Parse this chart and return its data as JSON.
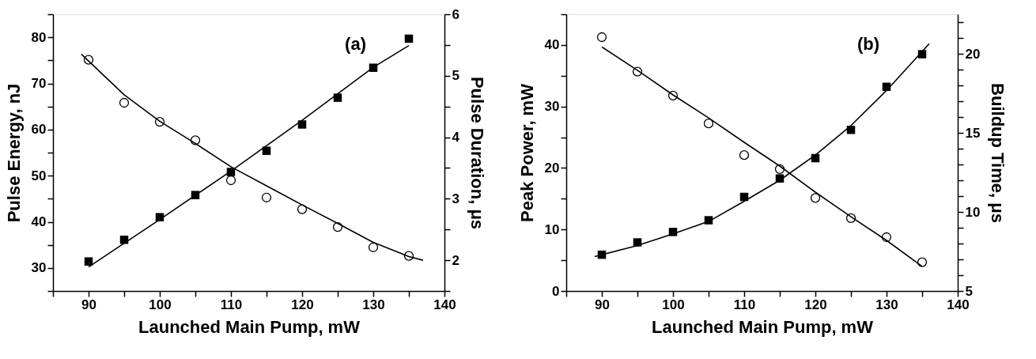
{
  "chart_data": [
    {
      "type": "scatter",
      "xlabel": "Launched Main Pump,  mW",
      "ylabel": "Pulse Energy,  nJ",
      "y2label": "Pulse Duration,  μs",
      "annotations": [
        "(a)"
      ],
      "xlim": [
        85,
        140
      ],
      "xticks": [
        {
          "value": 85,
          "label": null
        },
        90,
        {
          "value": 95,
          "label": null
        },
        100,
        {
          "value": 105,
          "label": null
        },
        110,
        {
          "value": 115,
          "label": null
        },
        120,
        {
          "value": 125,
          "label": null
        },
        130,
        {
          "value": 135,
          "label": null
        },
        140
      ],
      "ylim": [
        25,
        85
      ],
      "yticks": [
        {
          "value": 25,
          "label": null
        },
        30,
        {
          "value": 35,
          "label": null
        },
        40,
        {
          "value": 45,
          "label": null
        },
        50,
        {
          "value": 55,
          "label": null
        },
        60,
        {
          "value": 65,
          "label": null
        },
        70,
        {
          "value": 75,
          "label": null
        },
        80,
        {
          "value": 85,
          "label": null
        }
      ],
      "y2lim": [
        1.5,
        6
      ],
      "y2ticks": [
        {
          "value": 1.5,
          "label": null
        },
        2,
        {
          "value": 2.5,
          "label": null
        },
        3,
        {
          "value": 3.5,
          "label": null
        },
        4,
        {
          "value": 4.5,
          "label": null
        },
        5,
        {
          "value": 5.5,
          "label": null
        },
        6
      ],
      "grid": false,
      "legend": false,
      "series": [
        {
          "type": "scatter",
          "marker": "square",
          "color": "#000000",
          "x": [
            90,
            95,
            100,
            105,
            110,
            115,
            120,
            125,
            130,
            135
          ],
          "values": [
            31.4,
            36.1,
            41.0,
            45.8,
            50.8,
            55.4,
            61.1,
            66.9,
            73.4,
            79.7
          ]
        },
        {
          "type": "line",
          "marker": "none",
          "color": "#000000",
          "x": [
            90,
            100,
            110,
            120,
            130,
            135
          ],
          "values": [
            30.2,
            40.5,
            51.0,
            62.0,
            73.5,
            78.2
          ]
        },
        {
          "type": "scatter",
          "marker": "circle",
          "color": "#000000",
          "axis": "y2",
          "x": [
            90,
            95,
            100,
            105,
            110,
            115,
            120,
            125,
            130,
            135
          ],
          "values": [
            5.26,
            4.56,
            4.25,
            3.95,
            3.3,
            3.02,
            2.83,
            2.54,
            2.21,
            2.07
          ]
        },
        {
          "type": "line",
          "marker": "none",
          "color": "#000000",
          "axis": "y2",
          "x": [
            89,
            95,
            100,
            105,
            110,
            115,
            120,
            125,
            130,
            135,
            137
          ],
          "values": [
            5.35,
            4.69,
            4.26,
            3.9,
            3.52,
            3.21,
            2.9,
            2.6,
            2.29,
            2.06,
            2.0
          ]
        }
      ]
    },
    {
      "type": "scatter",
      "xlabel": "Launched Main Pump,  mW",
      "ylabel": "Peak Power,  mW",
      "y2label": "Buildup Time,  μs",
      "annotations": [
        "(b)"
      ],
      "xlim": [
        85,
        140
      ],
      "xticks": [
        {
          "value": 85,
          "label": null
        },
        90,
        {
          "value": 95,
          "label": null
        },
        100,
        {
          "value": 105,
          "label": null
        },
        110,
        {
          "value": 115,
          "label": null
        },
        120,
        {
          "value": 125,
          "label": null
        },
        130,
        {
          "value": 135,
          "label": null
        },
        140
      ],
      "ylim": [
        0,
        45
      ],
      "yticks": [
        0,
        {
          "value": 5,
          "label": null
        },
        10,
        {
          "value": 15,
          "label": null
        },
        20,
        {
          "value": 25,
          "label": null
        },
        30,
        {
          "value": 35,
          "label": null
        },
        40,
        {
          "value": 45,
          "label": null
        }
      ],
      "y2lim": [
        5,
        22.5
      ],
      "y2ticks": [
        5,
        {
          "value": 6,
          "label": null
        },
        {
          "value": 7,
          "label": null
        },
        {
          "value": 8,
          "label": null
        },
        {
          "value": 9,
          "label": null
        },
        10,
        {
          "value": 11,
          "label": null
        },
        {
          "value": 12,
          "label": null
        },
        {
          "value": 13,
          "label": null
        },
        {
          "value": 14,
          "label": null
        },
        15,
        {
          "value": 16,
          "label": null
        },
        {
          "value": 17,
          "label": null
        },
        {
          "value": 18,
          "label": null
        },
        {
          "value": 19,
          "label": null
        },
        20,
        {
          "value": 21,
          "label": null
        },
        {
          "value": 22,
          "label": null
        }
      ],
      "grid": false,
      "legend": false,
      "series": [
        {
          "type": "scatter",
          "marker": "square",
          "color": "#000000",
          "x": [
            90,
            95,
            100,
            105,
            110,
            115,
            120,
            125,
            130,
            135
          ],
          "values": [
            5.9,
            7.9,
            9.6,
            11.5,
            15.3,
            18.3,
            21.6,
            26.2,
            33.2,
            38.5
          ]
        },
        {
          "type": "line",
          "marker": "none",
          "color": "#000000",
          "x": [
            89,
            95,
            100,
            105,
            110,
            115,
            120,
            125,
            130,
            136
          ],
          "values": [
            5.6,
            7.4,
            9.3,
            11.3,
            14.6,
            18.0,
            22.1,
            26.9,
            32.6,
            40.2
          ]
        },
        {
          "type": "scatter",
          "marker": "circle",
          "color": "#000000",
          "axis": "y2",
          "x": [
            90,
            95,
            100,
            105,
            110,
            115,
            120,
            125,
            130,
            135
          ],
          "values": [
            21.05,
            18.87,
            17.36,
            15.59,
            13.59,
            12.71,
            10.88,
            9.61,
            8.4,
            6.82
          ]
        },
        {
          "type": "line",
          "marker": "none",
          "color": "#000000",
          "axis": "y2",
          "x": [
            90,
            95,
            100,
            105,
            110,
            115,
            120,
            125,
            130,
            135
          ],
          "values": [
            20.43,
            18.96,
            17.4,
            15.94,
            14.4,
            12.9,
            11.25,
            9.69,
            8.2,
            6.56
          ]
        }
      ]
    }
  ]
}
